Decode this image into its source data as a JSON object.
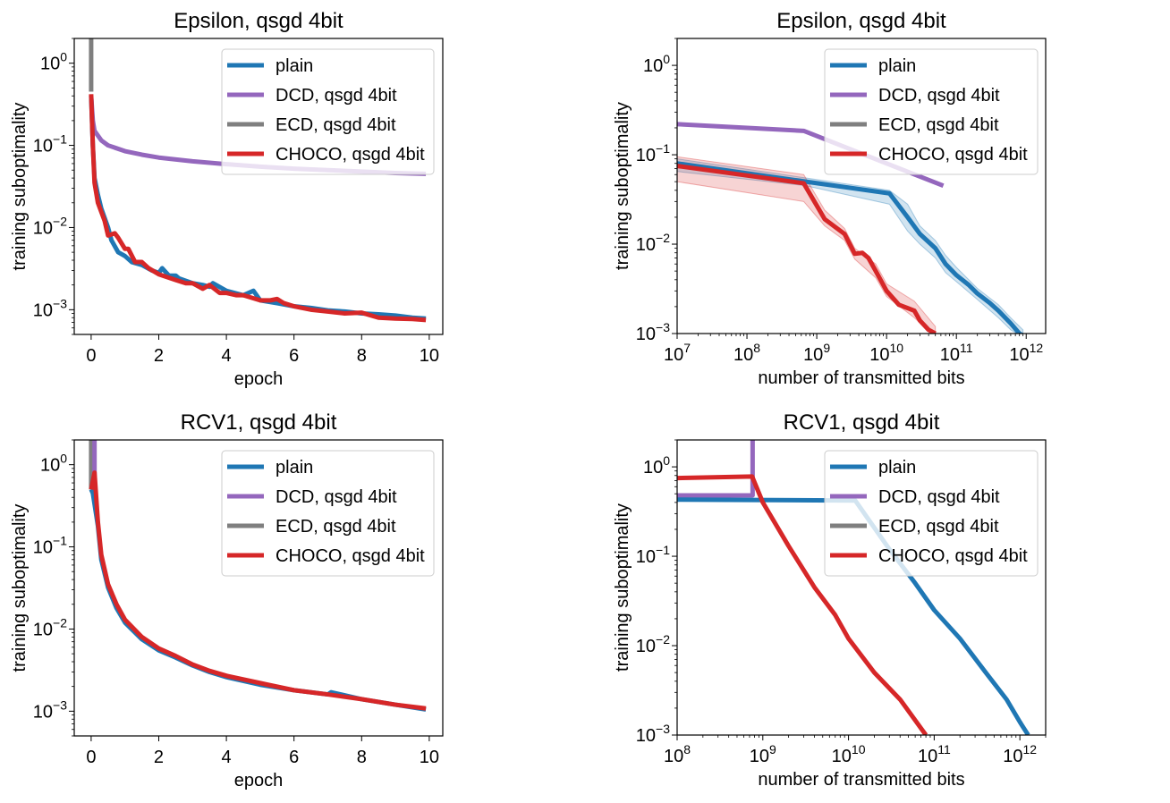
{
  "colors": {
    "plain": "#1f77b4",
    "DCD": "#9467bd",
    "ECD": "#7f7f7f",
    "CHOCO": "#d62728"
  },
  "chart_data": [
    {
      "type": "line",
      "title": "Epsilon, qsgd 4bit",
      "xlabel": "epoch",
      "ylabel": "training suboptimality",
      "xscale": "linear",
      "yscale": "log",
      "xlim": [
        -0.5,
        10.4
      ],
      "ylim": [
        0.0005,
        2
      ],
      "xticks": [
        0,
        2,
        4,
        6,
        8,
        10
      ],
      "yticks": [
        1,
        0.1,
        0.01,
        0.001
      ],
      "legend": "top-right",
      "series": [
        {
          "name": "plain",
          "key": "plain",
          "points": [
            [
              0,
              0.4
            ],
            [
              0.05,
              0.1
            ],
            [
              0.1,
              0.04
            ],
            [
              0.2,
              0.025
            ],
            [
              0.3,
              0.017
            ],
            [
              0.5,
              0.01
            ],
            [
              0.6,
              0.007
            ],
            [
              0.8,
              0.005
            ],
            [
              1,
              0.0045
            ],
            [
              1.2,
              0.0038
            ],
            [
              1.5,
              0.0035
            ],
            [
              1.8,
              0.003
            ],
            [
              2,
              0.0028
            ],
            [
              2.1,
              0.0032
            ],
            [
              2.3,
              0.0026
            ],
            [
              2.5,
              0.0026
            ],
            [
              2.6,
              0.0024
            ],
            [
              3,
              0.0021
            ],
            [
              3.3,
              0.002
            ],
            [
              3.5,
              0.0019
            ],
            [
              3.6,
              0.0021
            ],
            [
              4,
              0.0017
            ],
            [
              4.5,
              0.0015
            ],
            [
              4.8,
              0.0017
            ],
            [
              5,
              0.0013
            ],
            [
              5.5,
              0.0012
            ],
            [
              6,
              0.0011
            ],
            [
              6.5,
              0.00105
            ],
            [
              7,
              0.00098
            ],
            [
              7.5,
              0.00095
            ],
            [
              8,
              0.0009
            ],
            [
              8.5,
              0.00088
            ],
            [
              9,
              0.00085
            ],
            [
              9.5,
              0.0008
            ],
            [
              9.9,
              0.00078
            ]
          ]
        },
        {
          "name": "DCD,  qsgd 4bit",
          "key": "DCD",
          "points": [
            [
              0,
              0.4
            ],
            [
              0.05,
              0.2
            ],
            [
              0.1,
              0.15
            ],
            [
              0.3,
              0.115
            ],
            [
              0.5,
              0.1
            ],
            [
              1,
              0.085
            ],
            [
              1.5,
              0.077
            ],
            [
              2,
              0.071
            ],
            [
              3,
              0.064
            ],
            [
              4,
              0.059
            ],
            [
              5,
              0.055
            ],
            [
              6,
              0.052
            ],
            [
              7,
              0.05
            ],
            [
              8,
              0.048
            ],
            [
              9,
              0.046
            ],
            [
              9.9,
              0.045
            ]
          ]
        },
        {
          "name": "ECD,  qsgd 4bit",
          "key": "ECD",
          "points": [
            [
              0,
              0.45
            ],
            [
              0,
              3
            ]
          ]
        },
        {
          "name": "CHOCO,  qsgd 4bit",
          "key": "CHOCO",
          "points": [
            [
              0,
              0.42
            ],
            [
              0.05,
              0.1
            ],
            [
              0.1,
              0.035
            ],
            [
              0.2,
              0.02
            ],
            [
              0.4,
              0.012
            ],
            [
              0.5,
              0.008
            ],
            [
              0.7,
              0.0085
            ],
            [
              0.8,
              0.0075
            ],
            [
              1,
              0.0055
            ],
            [
              1.1,
              0.0055
            ],
            [
              1.3,
              0.0038
            ],
            [
              1.5,
              0.0038
            ],
            [
              1.7,
              0.0032
            ],
            [
              2,
              0.0027
            ],
            [
              2.5,
              0.0023
            ],
            [
              2.8,
              0.0021
            ],
            [
              3,
              0.0021
            ],
            [
              3.3,
              0.0018
            ],
            [
              3.5,
              0.002
            ],
            [
              3.8,
              0.0016
            ],
            [
              4,
              0.0016
            ],
            [
              4.3,
              0.0015
            ],
            [
              4.5,
              0.0015
            ],
            [
              5,
              0.0013
            ],
            [
              5.3,
              0.0013
            ],
            [
              5.5,
              0.00135
            ],
            [
              5.7,
              0.0012
            ],
            [
              6,
              0.0011
            ],
            [
              6.5,
              0.001
            ],
            [
              7,
              0.00095
            ],
            [
              7.5,
              0.0009
            ],
            [
              8,
              0.00092
            ],
            [
              8.5,
              0.0008
            ],
            [
              9,
              0.00078
            ],
            [
              9.5,
              0.00077
            ],
            [
              9.9,
              0.00075
            ]
          ]
        }
      ]
    },
    {
      "type": "line",
      "title": "Epsilon, qsgd 4bit",
      "xlabel": "number of transmitted bits",
      "ylabel": "training suboptimality",
      "xscale": "log",
      "yscale": "log",
      "xlim": [
        10000000.0,
        1900000000000.0
      ],
      "ylim": [
        0.001,
        2
      ],
      "xticks": [
        10000000.0,
        100000000.0,
        1000000000.0,
        10000000000.0,
        100000000000.0,
        1000000000000.0
      ],
      "yticks": [
        1,
        0.1,
        0.01,
        0.001
      ],
      "legend": "top-right",
      "series": [
        {
          "name": "plain",
          "key": "plain",
          "points": [
            [
              10000000.0,
              0.08
            ],
            [
              700000000.0,
              0.05
            ],
            [
              11000000000.0,
              0.037
            ],
            [
              20000000000.0,
              0.02
            ],
            [
              30000000000.0,
              0.013
            ],
            [
              50000000000.0,
              0.009
            ],
            [
              70000000000.0,
              0.006
            ],
            [
              100000000000.0,
              0.0045
            ],
            [
              150000000000.0,
              0.0035
            ],
            [
              200000000000.0,
              0.0028
            ],
            [
              300000000000.0,
              0.0022
            ],
            [
              400000000000.0,
              0.0018
            ],
            [
              600000000000.0,
              0.0013
            ],
            [
              800000000000.0,
              0.001
            ],
            [
              900000000000.0,
              0.00095
            ]
          ],
          "band": [
            [
              10000000.0,
              0.065,
              0.09
            ],
            [
              700000000.0,
              0.045,
              0.055
            ],
            [
              11000000000.0,
              0.028,
              0.04
            ],
            [
              20000000000.0,
              0.014,
              0.028
            ],
            [
              30000000000.0,
              0.01,
              0.016
            ],
            [
              50000000000.0,
              0.007,
              0.011
            ],
            [
              70000000000.0,
              0.0048,
              0.0075
            ],
            [
              100000000000.0,
              0.0038,
              0.0055
            ],
            [
              200000000000.0,
              0.0024,
              0.0032
            ],
            [
              400000000000.0,
              0.0015,
              0.0021
            ],
            [
              600000000000.0,
              0.0011,
              0.0015
            ],
            [
              900000000000.0,
              0.0009,
              0.0011
            ]
          ]
        },
        {
          "name": "DCD,  qsgd 4bit",
          "key": "DCD",
          "points": [
            [
              10000000.0,
              0.22
            ],
            [
              650000000.0,
              0.185
            ],
            [
              65000000000.0,
              0.045
            ]
          ]
        },
        {
          "name": "ECD,  qsgd 4bit",
          "key": "ECD",
          "points": []
        },
        {
          "name": "CHOCO,  qsgd 4bit",
          "key": "CHOCO",
          "points": [
            [
              10000000.0,
              0.075
            ],
            [
              650000000.0,
              0.048
            ],
            [
              1300000000.0,
              0.019
            ],
            [
              2500000000.0,
              0.013
            ],
            [
              3500000000.0,
              0.0078
            ],
            [
              4500000000.0,
              0.008
            ],
            [
              5500000000.0,
              0.007
            ],
            [
              7000000000.0,
              0.005
            ],
            [
              10000000000.0,
              0.003
            ],
            [
              15000000000.0,
              0.0021
            ],
            [
              25000000000.0,
              0.0018
            ],
            [
              30000000000.0,
              0.0014
            ],
            [
              40000000000.0,
              0.0011
            ],
            [
              50000000000.0,
              0.001
            ]
          ],
          "band": [
            [
              10000000.0,
              0.05,
              0.095
            ],
            [
              650000000.0,
              0.03,
              0.06
            ],
            [
              1300000000.0,
              0.016,
              0.024
            ],
            [
              2500000000.0,
              0.011,
              0.015
            ],
            [
              3500000000.0,
              0.0068,
              0.009
            ],
            [
              7000000000.0,
              0.0042,
              0.006
            ],
            [
              10000000000.0,
              0.0026,
              0.0036
            ],
            [
              25000000000.0,
              0.0015,
              0.0023
            ],
            [
              50000000000.0,
              0.0009,
              0.0012
            ]
          ]
        }
      ]
    },
    {
      "type": "line",
      "title": "RCV1, qsgd 4bit",
      "xlabel": "epoch",
      "ylabel": "training suboptimality",
      "xscale": "linear",
      "yscale": "log",
      "xlim": [
        -0.5,
        10.4
      ],
      "ylim": [
        0.0005,
        2
      ],
      "xticks": [
        0,
        2,
        4,
        6,
        8,
        10
      ],
      "yticks": [
        1,
        0.1,
        0.01,
        0.001
      ],
      "legend": "top-right",
      "series": [
        {
          "name": "plain",
          "key": "plain",
          "points": [
            [
              0,
              0.5
            ],
            [
              0.05,
              0.45
            ],
            [
              0.2,
              0.18
            ],
            [
              0.3,
              0.07
            ],
            [
              0.5,
              0.032
            ],
            [
              0.75,
              0.018
            ],
            [
              1,
              0.012
            ],
            [
              1.5,
              0.0075
            ],
            [
              2,
              0.0055
            ],
            [
              2.5,
              0.0045
            ],
            [
              3,
              0.0036
            ],
            [
              3.5,
              0.003
            ],
            [
              4,
              0.0026
            ],
            [
              5,
              0.0021
            ],
            [
              6,
              0.0018
            ],
            [
              7,
              0.0016
            ],
            [
              7.1,
              0.0017
            ],
            [
              8,
              0.0014
            ],
            [
              9,
              0.0012
            ],
            [
              9.9,
              0.00105
            ]
          ]
        },
        {
          "name": "DCD,  qsgd 4bit",
          "key": "DCD",
          "points": [
            [
              0.1,
              0.5
            ],
            [
              0.1,
              3
            ]
          ]
        },
        {
          "name": "ECD,  qsgd 4bit",
          "key": "ECD",
          "points": [
            [
              0,
              0.5
            ],
            [
              0,
              3
            ]
          ]
        },
        {
          "name": "CHOCO,  qsgd 4bit",
          "key": "CHOCO",
          "points": [
            [
              0,
              0.5
            ],
            [
              0.1,
              0.8
            ],
            [
              0.2,
              0.2
            ],
            [
              0.3,
              0.08
            ],
            [
              0.5,
              0.035
            ],
            [
              0.75,
              0.02
            ],
            [
              1,
              0.013
            ],
            [
              1.5,
              0.008
            ],
            [
              2,
              0.0058
            ],
            [
              2.5,
              0.0047
            ],
            [
              3,
              0.0037
            ],
            [
              3.5,
              0.0031
            ],
            [
              4,
              0.0027
            ],
            [
              5,
              0.0022
            ],
            [
              6,
              0.0018
            ],
            [
              7,
              0.0016
            ],
            [
              8,
              0.0014
            ],
            [
              9,
              0.0012
            ],
            [
              9.9,
              0.00108
            ]
          ]
        }
      ]
    },
    {
      "type": "line",
      "title": "RCV1, qsgd 4bit",
      "xlabel": "number of transmitted bits",
      "ylabel": "training suboptimality",
      "xscale": "log",
      "yscale": "log",
      "xlim": [
        100000000.0,
        2000000000000.0
      ],
      "ylim": [
        0.001,
        2
      ],
      "xticks": [
        100000000.0,
        1000000000.0,
        10000000000.0,
        100000000000.0,
        1000000000000.0
      ],
      "yticks": [
        1,
        0.1,
        0.01,
        0.001
      ],
      "legend": "top-right",
      "series": [
        {
          "name": "plain",
          "key": "plain",
          "points": [
            [
              100000000.0,
              0.43
            ],
            [
              12000000000.0,
              0.42
            ],
            [
              30000000000.0,
              0.12
            ],
            [
              60000000000.0,
              0.05
            ],
            [
              100000000000.0,
              0.025
            ],
            [
              200000000000.0,
              0.012
            ],
            [
              400000000000.0,
              0.005
            ],
            [
              700000000000.0,
              0.0025
            ],
            [
              1000000000000.0,
              0.0014
            ],
            [
              1250000000000.0,
              0.001
            ]
          ]
        },
        {
          "name": "DCD,  qsgd 4bit",
          "key": "DCD",
          "points": [
            [
              100000000.0,
              0.48
            ],
            [
              760000000.0,
              0.48
            ],
            [
              760000000.0,
              3
            ]
          ]
        },
        {
          "name": "ECD,  qsgd 4bit",
          "key": "ECD",
          "points": []
        },
        {
          "name": "CHOCO,  qsgd 4bit",
          "key": "CHOCO",
          "points": [
            [
              100000000.0,
              0.75
            ],
            [
              750000000.0,
              0.78
            ],
            [
              1000000000.0,
              0.4
            ],
            [
              2000000000.0,
              0.13
            ],
            [
              4000000000.0,
              0.045
            ],
            [
              7000000000.0,
              0.022
            ],
            [
              10000000000.0,
              0.012
            ],
            [
              20000000000.0,
              0.005
            ],
            [
              40000000000.0,
              0.0025
            ],
            [
              80000000000.0,
              0.001
            ]
          ]
        }
      ]
    }
  ]
}
